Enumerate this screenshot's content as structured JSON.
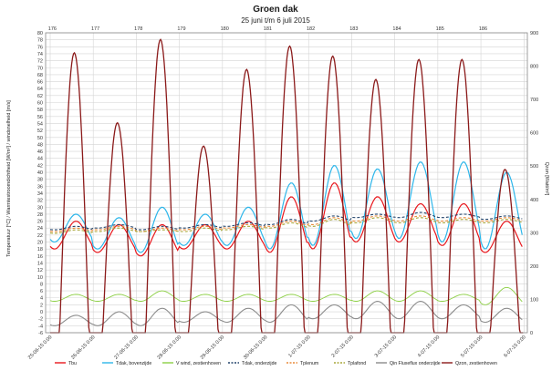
{
  "chart_data": {
    "type": "line",
    "title": "Groen dak",
    "subtitle": "25 juni t/m 6 juli 2015",
    "ylabel_left": "Temperatuur [°C] / Warmtestroomdichtheid [W/m²] / windsnelheid [m/s]",
    "ylabel_right": "Qzon [Watt/m²]",
    "ylim_left": [
      -6,
      80
    ],
    "ylim_right": [
      0,
      900
    ],
    "left_ticks": [
      -6,
      -4,
      -2,
      0,
      2,
      4,
      6,
      8,
      10,
      12,
      14,
      16,
      18,
      20,
      22,
      24,
      26,
      28,
      30,
      32,
      34,
      36,
      38,
      40,
      42,
      44,
      46,
      48,
      50,
      52,
      54,
      56,
      58,
      60,
      62,
      64,
      66,
      68,
      70,
      72,
      74,
      76,
      78,
      80
    ],
    "right_ticks": [
      0,
      100,
      200,
      300,
      400,
      500,
      600,
      700,
      800,
      900
    ],
    "top_ticks": [
      "176",
      "177",
      "178",
      "179",
      "180",
      "181",
      "182",
      "183",
      "184",
      "185",
      "186"
    ],
    "x_ticks": [
      "25-06-15 0:00",
      "26-06-15 0:00",
      "27-06-15 0:00",
      "28-06-15 0:00",
      "29-06-15 0:00",
      "30-06-15 0:00",
      "1-07-15 0:00",
      "2-07-15 0:00",
      "3-07-15 0:00",
      "4-07-15 0:00",
      "5-07-15 0:00",
      "6-07-15 0:00"
    ],
    "grid": true,
    "legend_position": "bottom",
    "series": [
      {
        "name": "Tbu",
        "color": "#e8161c",
        "axis": "left",
        "width": 1.2,
        "dash": "",
        "day_min": [
          18,
          17,
          16,
          18,
          18,
          17,
          18,
          20,
          20,
          19,
          17
        ],
        "day_max": [
          26,
          25,
          25,
          25,
          26,
          33,
          37,
          33,
          31,
          31,
          26
        ]
      },
      {
        "name": "Tdak, bovenzijde",
        "color": "#2db6ea",
        "axis": "left",
        "width": 1.2,
        "dash": "",
        "day_min": [
          20,
          18,
          17,
          19,
          19,
          18,
          19,
          21,
          21,
          20,
          18
        ],
        "day_max": [
          28,
          27,
          30,
          28,
          30,
          37,
          42,
          41,
          43,
          43,
          40
        ]
      },
      {
        "name": "V wind, zestienhoven",
        "color": "#8ccf44",
        "axis": "left",
        "width": 0.9,
        "dash": "",
        "day_min": [
          3,
          3,
          3,
          3,
          3,
          3,
          3,
          3,
          3,
          3,
          2
        ],
        "day_max": [
          5,
          5,
          6,
          5,
          5,
          5,
          5,
          6,
          6,
          5,
          7
        ]
      },
      {
        "name": "Tdak, onderzijde",
        "color": "#23446b",
        "axis": "left",
        "width": 1.1,
        "dash": "3,2",
        "day_min": [
          23.5,
          24,
          23.5,
          24,
          24.5,
          25,
          26,
          27,
          27,
          27,
          26.5
        ],
        "day_max": [
          24.5,
          25,
          24.5,
          25,
          25.5,
          26.5,
          27.5,
          28,
          28.5,
          28,
          27.5
        ]
      },
      {
        "name": "Tplenum",
        "color": "#e98a3a",
        "axis": "left",
        "width": 1.1,
        "dash": "3,2",
        "day_min": [
          23,
          23.5,
          23,
          23.5,
          24,
          24.5,
          25,
          26,
          26,
          26,
          26
        ],
        "day_max": [
          24,
          24.5,
          24,
          24.5,
          25,
          26,
          27,
          27.5,
          27.5,
          27,
          27
        ]
      },
      {
        "name": "Tplafond",
        "color": "#a9a73a",
        "axis": "left",
        "width": 1.1,
        "dash": "3,2",
        "day_min": [
          22.5,
          23,
          23,
          23,
          23.5,
          24,
          24.5,
          25.5,
          25.5,
          25.5,
          25.5
        ],
        "day_max": [
          23.5,
          24,
          23.5,
          24,
          24.5,
          25.5,
          26.5,
          27,
          27,
          26.5,
          26.5
        ]
      },
      {
        "name": "Qin Fluxeflux onderzijde",
        "color": "#8c8c8c",
        "axis": "left",
        "width": 1.1,
        "dash": "",
        "day_min": [
          -4,
          -4,
          -4,
          -3,
          -3,
          -3,
          -2,
          -2,
          -2,
          -2,
          -3
        ],
        "day_max": [
          -1,
          0,
          1,
          0,
          1,
          2,
          2,
          3,
          3,
          2,
          1
        ]
      },
      {
        "name": "Qzon, zestienhoven",
        "color": "#8b1a1a",
        "axis": "right",
        "width": 1.3,
        "dash": "",
        "day_peak": [
          840,
          630,
          880,
          560,
          790,
          860,
          830,
          760,
          820,
          820,
          490
        ]
      }
    ]
  }
}
